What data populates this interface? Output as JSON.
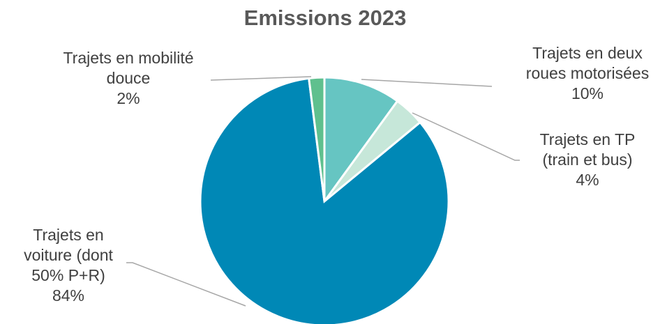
{
  "chart_data": {
    "type": "pie",
    "title": "Emissions 2023",
    "slices": [
      {
        "label_lines": [
          "Trajets en deux",
          "roues motorisées"
        ],
        "value_label": "10%",
        "value": 10,
        "color": "#66c5c2"
      },
      {
        "label_lines": [
          "Trajets en TP",
          "(train et bus)"
        ],
        "value_label": "4%",
        "value": 4,
        "color": "#c6e7d9"
      },
      {
        "label_lines": [
          "Trajets en",
          "voiture (dont",
          "50% P+R)"
        ],
        "value_label": "84%",
        "value": 84,
        "color": "#0088b6"
      },
      {
        "label_lines": [
          "Trajets en mobilité",
          "douce"
        ],
        "value_label": "2%",
        "value": 2,
        "color": "#5fc08e"
      }
    ],
    "start_angle_deg": 0,
    "direction": "clockwise",
    "legend": "none"
  }
}
